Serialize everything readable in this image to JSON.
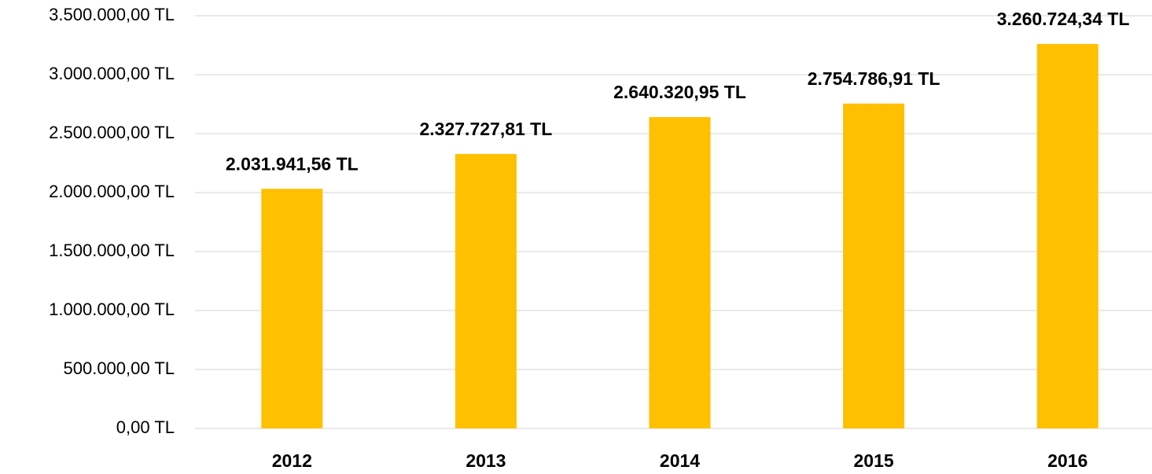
{
  "chart_data": {
    "type": "bar",
    "categories": [
      "2012",
      "2013",
      "2014",
      "2015",
      "2016"
    ],
    "values": [
      2031941.56,
      2327727.81,
      2640320.95,
      2754786.91,
      3260724.34
    ],
    "value_labels": [
      "2.031.941,56 TL",
      "2.327.727,81 TL",
      "2.640.320,95 TL",
      "2.754.786,91 TL",
      "3.260.724,34 TL"
    ],
    "color": "#ffc000",
    "ylim": [
      0,
      3500000
    ],
    "yticks": [
      {
        "value": 0,
        "label": "0,00 TL"
      },
      {
        "value": 500000,
        "label": "500.000,00 TL"
      },
      {
        "value": 1000000,
        "label": "1.000.000,00 TL"
      },
      {
        "value": 1500000,
        "label": "1.500.000,00 TL"
      },
      {
        "value": 2000000,
        "label": "2.000.000,00 TL"
      },
      {
        "value": 2500000,
        "label": "2.500.000,00 TL"
      },
      {
        "value": 3000000,
        "label": "3.000.000,00 TL"
      },
      {
        "value": 3500000,
        "label": "3.500.000,00 TL"
      }
    ],
    "grid": true
  }
}
